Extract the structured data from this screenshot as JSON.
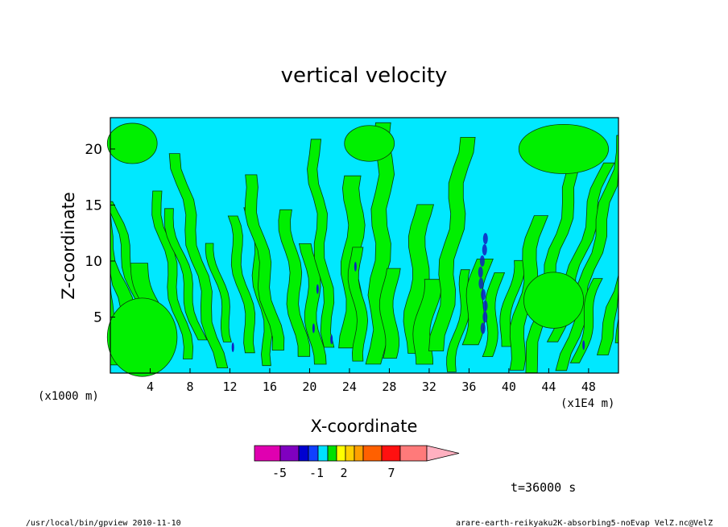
{
  "chart_data": {
    "type": "heatmap",
    "title": "vertical velocity",
    "xlabel": "X-coordinate",
    "ylabel": "Z-coordinate",
    "x_unit_left": "(x1000 m)",
    "x_unit_right": "(x1E4 m)",
    "xlim": [
      0,
      51
    ],
    "ylim": [
      0,
      22.8
    ],
    "x_ticks": [
      4,
      8,
      12,
      16,
      20,
      24,
      28,
      32,
      36,
      40,
      44,
      48
    ],
    "y_ticks": [
      5,
      10,
      15,
      20
    ],
    "grid": false,
    "colorbar": {
      "colors": [
        "#e000b0",
        "#8000c0",
        "#0000d0",
        "#1040ff",
        "#00e0ff",
        "#00e000",
        "#ffff00",
        "#ffd000",
        "#ffa000",
        "#ff6000",
        "#ff1010",
        "#ff7a7a",
        "#ffb0c0"
      ],
      "tick_labels": [
        "-5",
        "-1",
        "2",
        "7"
      ],
      "extend": "max"
    },
    "dominant_colors": {
      "negative": "#00e8ff",
      "positive": "#00f000",
      "strong": "#1020c0"
    },
    "time_label": "t=36000 s"
  },
  "footer": {
    "left": "/usr/local/bin/gpview  2010-11-10",
    "right": "arare-earth-reikyaku2K-absorbing5-noEvap_VelZ.nc@VelZ"
  }
}
